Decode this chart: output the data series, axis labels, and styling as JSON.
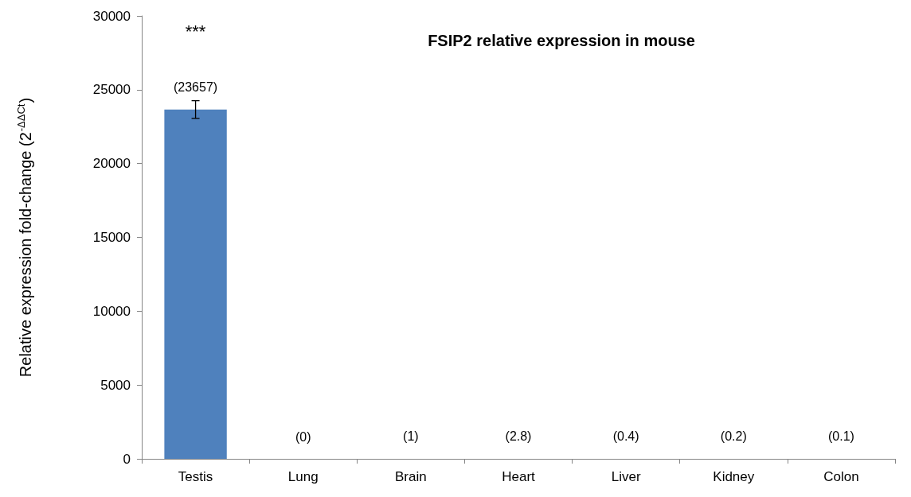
{
  "chart_data": {
    "type": "bar",
    "title": "FSIP2 relative expression in mouse",
    "ylabel": "Relative expression fold-change (2$^{-ΔΔCt}$)",
    "categories": [
      "Testis",
      "Lung",
      "Brain",
      "Heart",
      "Liver",
      "Kidney",
      "Colon"
    ],
    "values": [
      23657,
      0,
      1,
      2.8,
      0.4,
      0.2,
      0.1
    ],
    "value_labels": [
      "(23657)",
      "(0)",
      "(1)",
      "(2.8)",
      "(0.4)",
      "(0.2)",
      "(0.1)"
    ],
    "errors": [
      600,
      null,
      null,
      null,
      null,
      null,
      null
    ],
    "color": "#4f81bd",
    "ylim": [
      0,
      30000
    ],
    "yticks": [
      0,
      5000,
      10000,
      15000,
      20000,
      25000,
      30000
    ],
    "annotations": [
      "***"
    ],
    "grid": false
  }
}
